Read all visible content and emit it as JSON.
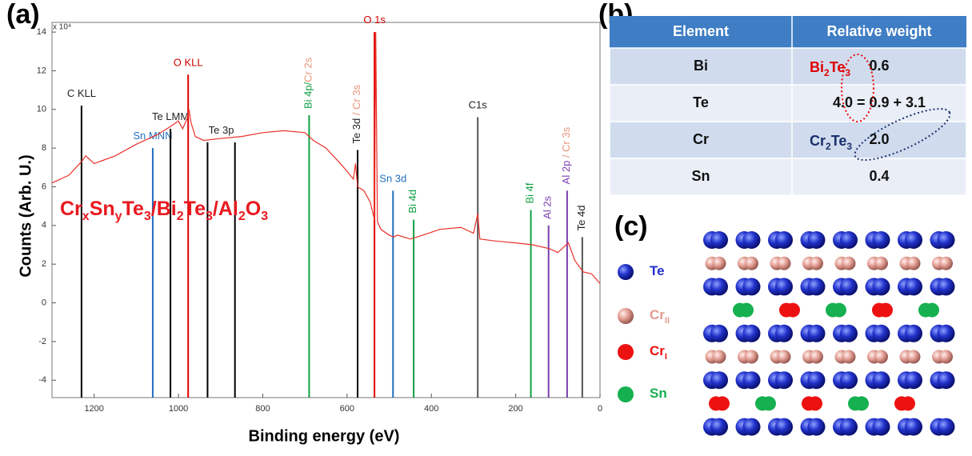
{
  "panel_labels": [
    "(a)",
    "(b)",
    "(c)"
  ],
  "chart_data": {
    "type": "line",
    "x_label": "Binding energy (eV)",
    "y_label": "Counts (Arb. U.)",
    "y_multiplier": "x 10⁴",
    "xlim": [
      1300,
      0
    ],
    "xticks": [
      1200,
      1000,
      800,
      600,
      400,
      200,
      0
    ],
    "ylim": [
      -4.9,
      14.5
    ],
    "yticks": [
      -4,
      -2,
      0,
      2,
      4,
      6,
      8,
      10,
      12,
      14
    ],
    "formula_parts": [
      "Cr",
      "x",
      "Sn",
      "y",
      "Te",
      "3",
      "/Bi",
      "2",
      "Te",
      "3",
      "/Al",
      "2",
      "O",
      "3"
    ],
    "x": [
      1300,
      1260,
      1230,
      1220,
      1200,
      1150,
      1100,
      1050,
      1020,
      1000,
      990,
      980,
      975,
      970,
      960,
      940,
      900,
      850,
      800,
      750,
      700,
      680,
      650,
      620,
      600,
      585,
      580,
      575,
      560,
      545,
      535,
      532,
      528,
      520,
      500,
      490,
      480,
      450,
      420,
      380,
      330,
      300,
      290,
      285,
      250,
      200,
      160,
      120,
      100,
      75,
      60,
      40,
      20,
      0
    ],
    "series": [
      {
        "color": "#e8322a",
        "values": [
          6.2,
          6.6,
          7.3,
          7.6,
          7.2,
          7.6,
          8.2,
          8.7,
          9.1,
          9.4,
          9.0,
          9.5,
          10.0,
          9.3,
          8.6,
          8.4,
          8.5,
          8.6,
          8.8,
          8.9,
          8.8,
          8.4,
          8.0,
          7.3,
          6.8,
          6.4,
          7.2,
          6.0,
          5.8,
          5.2,
          4.3,
          14.0,
          4.2,
          3.8,
          3.5,
          3.4,
          3.5,
          3.3,
          3.5,
          3.8,
          3.9,
          3.6,
          4.6,
          3.3,
          3.2,
          3.1,
          3.0,
          2.8,
          2.6,
          3.1,
          2.2,
          1.6,
          1.5,
          1.0
        ]
      }
    ],
    "annotations": [
      {
        "x": [
          1230
        ],
        "y": 10.2,
        "color": "#000000",
        "orientation": "horizontal",
        "labels": [
          {
            "text": "C KLL",
            "color": "#222222"
          }
        ]
      },
      {
        "x": [
          1061
        ],
        "y": 8.0,
        "color": "#1f6fbf",
        "orientation": "horizontal",
        "labels": [
          {
            "text": "Sn MNN",
            "color": "#1f6fbf"
          }
        ]
      },
      {
        "x": [
          1019
        ],
        "y": 9.0,
        "color": "#000000",
        "orientation": "horizontal",
        "labels": [
          {
            "text": "Te LMM",
            "color": "#222222"
          }
        ]
      },
      {
        "x": [
          977
        ],
        "y": 11.8,
        "color": "#e00000",
        "orientation": "horizontal",
        "labels": [
          {
            "text": "O KLL",
            "color": "#d00000"
          }
        ]
      },
      {
        "x": [
          931,
          866
        ],
        "y": 8.3,
        "color": "#000000",
        "orientation": "horizontal",
        "labels": [
          {
            "text": "Te 3p",
            "color": "#222222"
          }
        ]
      },
      {
        "x": [
          690
        ],
        "y": 9.7,
        "color": "#11a043",
        "orientation": "vertical",
        "labels": [
          {
            "text": "Bi 4p/",
            "color": "#11a043"
          },
          {
            "text": "Cr 2s",
            "color": "#e8957a"
          }
        ]
      },
      {
        "x": [
          575
        ],
        "y": 7.9,
        "color": "#000000",
        "orientation": "vertical",
        "labels": [
          {
            "text": "Te 3d",
            "color": "#222222"
          },
          {
            "text": "  / Cr 3s",
            "color": "#e8957a"
          }
        ]
      },
      {
        "x": [
          535
        ],
        "y": 14.0,
        "color": "#e00000",
        "orientation": "horizontal",
        "labels": [
          {
            "text": "O 1s",
            "color": "#d00000"
          }
        ]
      },
      {
        "x": [
          491
        ],
        "y": 5.8,
        "color": "#1f6fbf",
        "orientation": "horizontal",
        "labels": [
          {
            "text": "Sn 3d",
            "color": "#1f6fbf"
          }
        ]
      },
      {
        "x": [
          442
        ],
        "y": 4.3,
        "color": "#11a043",
        "orientation": "vertical",
        "labels": [
          {
            "text": "Bi 4d",
            "color": "#11a043"
          }
        ]
      },
      {
        "x": [
          290
        ],
        "y": 9.6,
        "color": "#555555",
        "orientation": "horizontal",
        "labels": [
          {
            "text": "C1s",
            "color": "#222222"
          }
        ]
      },
      {
        "x": [
          164
        ],
        "y": 4.8,
        "color": "#11a043",
        "orientation": "vertical",
        "labels": [
          {
            "text": "Bi 4f",
            "color": "#11a043"
          }
        ]
      },
      {
        "x": [
          122
        ],
        "y": 4.0,
        "color": "#7a3fb0",
        "orientation": "vertical",
        "labels": [
          {
            "text": "Al 2s",
            "color": "#7a3fb0"
          }
        ]
      },
      {
        "x": [
          78
        ],
        "y": 5.8,
        "color": "#7a3fb0",
        "orientation": "vertical",
        "labels": [
          {
            "text": "Al 2p",
            "color": "#7a3fb0"
          },
          {
            "text": "  / Cr 3s",
            "color": "#e8957a"
          }
        ]
      },
      {
        "x": [
          42
        ],
        "y": 3.4,
        "color": "#555555",
        "orientation": "vertical",
        "labels": [
          {
            "text": "Te 4d",
            "color": "#222222"
          }
        ]
      }
    ]
  },
  "table": {
    "header": [
      "Element",
      "Relative weight"
    ],
    "rows": [
      [
        "Bi",
        "0.6"
      ],
      [
        "Te",
        "4.0 = 0.9 + 3.1"
      ],
      [
        "Cr",
        "2.0"
      ],
      [
        "Sn",
        "0.4"
      ]
    ],
    "notes": [
      {
        "row": 0,
        "parts": [
          "Bi",
          "2",
          "Te",
          "3"
        ],
        "color": "#e00000"
      },
      {
        "row": 2,
        "parts": [
          "Cr",
          "2",
          "Te",
          "3"
        ],
        "color": "#1a2f6b"
      }
    ]
  },
  "structure": {
    "legend": [
      {
        "parts": [
          "Te"
        ],
        "color": "#2030d0"
      },
      {
        "parts": [
          "Cr",
          "II"
        ],
        "color": "#e49a90"
      },
      {
        "parts": [
          "Cr",
          "I"
        ],
        "color": "#ee1111"
      },
      {
        "parts": [
          "Sn"
        ],
        "color": "#16b050"
      }
    ]
  }
}
